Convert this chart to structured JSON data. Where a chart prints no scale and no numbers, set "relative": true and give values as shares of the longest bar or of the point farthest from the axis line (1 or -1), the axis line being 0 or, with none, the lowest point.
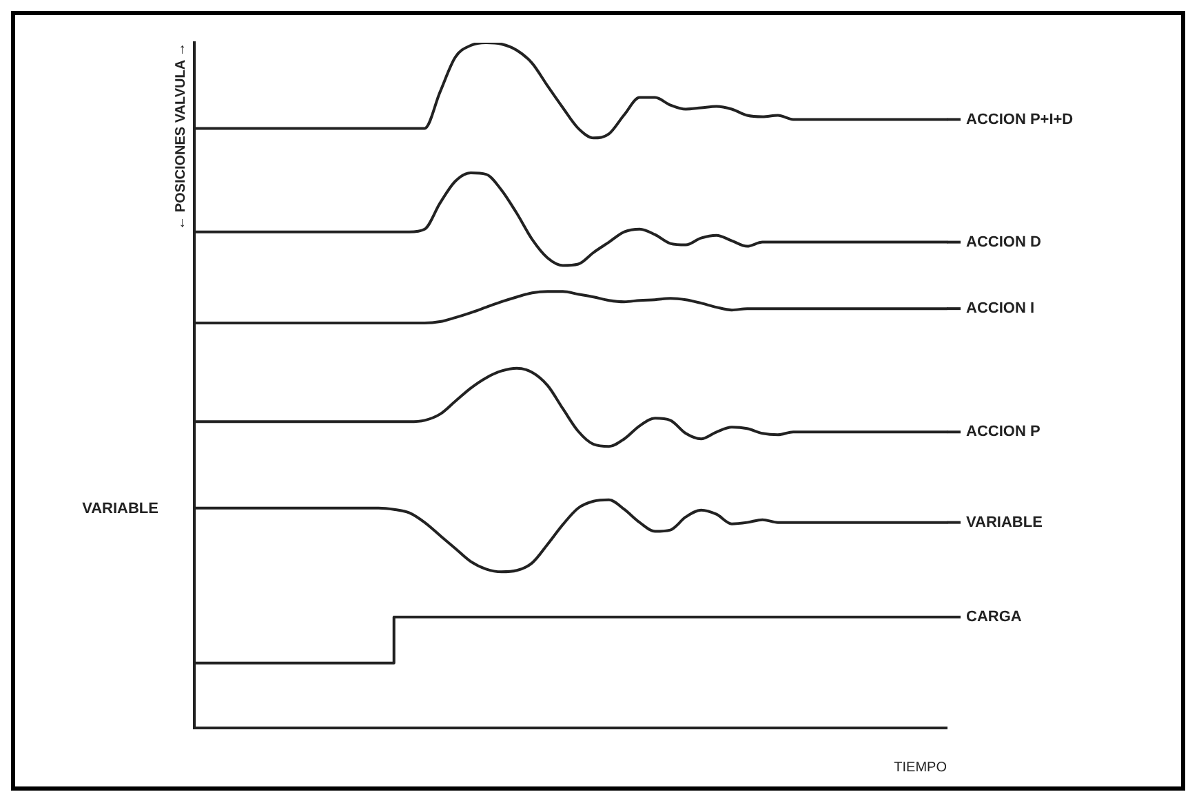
{
  "chart_data": {
    "type": "line",
    "relative": true,
    "ylabel": "← POSICIONES VALVULA →",
    "xlabel": "TIEMPO",
    "annotations": [
      "VARIABLE"
    ],
    "categories": [
      null,
      null,
      null,
      null,
      null,
      null,
      null,
      null,
      null,
      null,
      null,
      null,
      null,
      null,
      null,
      null,
      null,
      null,
      null,
      null,
      null,
      null,
      null,
      null,
      null,
      null,
      null,
      null,
      null,
      null,
      null,
      null,
      null,
      null,
      null,
      null,
      null,
      null,
      null,
      null,
      null,
      null,
      null,
      null,
      null,
      null,
      null,
      null,
      null,
      null
    ],
    "grid": false,
    "legend": "right",
    "marker": "none",
    "line_style": "solid",
    "series": [
      {
        "name": "ACCION P+I+D",
        "color": "#222222",
        "values": [
          0.875,
          0.875,
          0.875,
          0.875,
          0.875,
          0.875,
          0.875,
          0.875,
          0.875,
          0.875,
          0.875,
          0.875,
          0.875,
          0.875,
          0.875,
          0.875,
          0.928,
          0.979,
          0.996,
          1.0,
          0.998,
          0.989,
          0.97,
          0.937,
          0.905,
          0.875,
          0.861,
          0.867,
          0.895,
          0.92,
          0.92,
          0.909,
          0.903,
          0.905,
          0.907,
          0.903,
          0.894,
          0.892,
          0.894,
          0.888,
          0.888,
          0.888,
          0.888,
          0.888,
          0.888,
          0.888,
          0.888,
          0.888,
          0.888,
          0.888
        ]
      },
      {
        "name": "ACCION D",
        "color": "#222222",
        "values": [
          0.724,
          0.724,
          0.724,
          0.724,
          0.724,
          0.724,
          0.724,
          0.724,
          0.724,
          0.724,
          0.724,
          0.724,
          0.724,
          0.724,
          0.724,
          0.728,
          0.766,
          0.798,
          0.81,
          0.808,
          0.785,
          0.751,
          0.713,
          0.686,
          0.675,
          0.677,
          0.694,
          0.709,
          0.724,
          0.728,
          0.72,
          0.707,
          0.705,
          0.715,
          0.719,
          0.711,
          0.703,
          0.709,
          0.709,
          0.709,
          0.709,
          0.709,
          0.709,
          0.709,
          0.709,
          0.709,
          0.709,
          0.709,
          0.709,
          0.709
        ]
      },
      {
        "name": "ACCION I",
        "color": "#222222",
        "values": [
          0.591,
          0.591,
          0.591,
          0.591,
          0.591,
          0.591,
          0.591,
          0.591,
          0.591,
          0.591,
          0.591,
          0.591,
          0.591,
          0.591,
          0.591,
          0.591,
          0.593,
          0.599,
          0.606,
          0.614,
          0.622,
          0.629,
          0.635,
          0.637,
          0.637,
          0.633,
          0.629,
          0.624,
          0.622,
          0.624,
          0.625,
          0.627,
          0.625,
          0.62,
          0.614,
          0.61,
          0.612,
          0.612,
          0.612,
          0.612,
          0.612,
          0.612,
          0.612,
          0.612,
          0.612,
          0.612,
          0.612,
          0.612,
          0.612,
          0.612
        ]
      },
      {
        "name": "ACCION P",
        "color": "#222222",
        "values": [
          0.447,
          0.447,
          0.447,
          0.447,
          0.447,
          0.447,
          0.447,
          0.447,
          0.447,
          0.447,
          0.447,
          0.447,
          0.447,
          0.447,
          0.447,
          0.449,
          0.458,
          0.477,
          0.496,
          0.511,
          0.521,
          0.525,
          0.519,
          0.5,
          0.466,
          0.433,
          0.414,
          0.411,
          0.422,
          0.441,
          0.452,
          0.449,
          0.43,
          0.422,
          0.432,
          0.439,
          0.437,
          0.43,
          0.428,
          0.432,
          0.432,
          0.432,
          0.432,
          0.432,
          0.432,
          0.432,
          0.432,
          0.432,
          0.432,
          0.432
        ]
      },
      {
        "name": "VARIABLE",
        "color": "#222222",
        "values": [
          0.321,
          0.321,
          0.321,
          0.321,
          0.321,
          0.321,
          0.321,
          0.321,
          0.321,
          0.321,
          0.321,
          0.321,
          0.321,
          0.319,
          0.314,
          0.3,
          0.281,
          0.262,
          0.243,
          0.232,
          0.228,
          0.23,
          0.241,
          0.268,
          0.297,
          0.321,
          0.331,
          0.333,
          0.319,
          0.3,
          0.287,
          0.289,
          0.308,
          0.318,
          0.312,
          0.298,
          0.3,
          0.304,
          0.3,
          0.3,
          0.3,
          0.3,
          0.3,
          0.3,
          0.3,
          0.3,
          0.3,
          0.3,
          0.3,
          0.3
        ]
      },
      {
        "name": "CARGA",
        "type": "step",
        "color": "#222222",
        "values": [
          0.095,
          0.095,
          0.095,
          0.095,
          0.095,
          0.095,
          0.095,
          0.095,
          0.095,
          0.095,
          0.095,
          0.095,
          0.095,
          0.095,
          0.162,
          0.162,
          0.162,
          0.162,
          0.162,
          0.162,
          0.162,
          0.162,
          0.162,
          0.162,
          0.162,
          0.162,
          0.162,
          0.162,
          0.162,
          0.162,
          0.162,
          0.162,
          0.162,
          0.162,
          0.162,
          0.162,
          0.162,
          0.162,
          0.162,
          0.162,
          0.162,
          0.162,
          0.162,
          0.162,
          0.162,
          0.162,
          0.162,
          0.162,
          0.162,
          0.162
        ]
      }
    ]
  }
}
